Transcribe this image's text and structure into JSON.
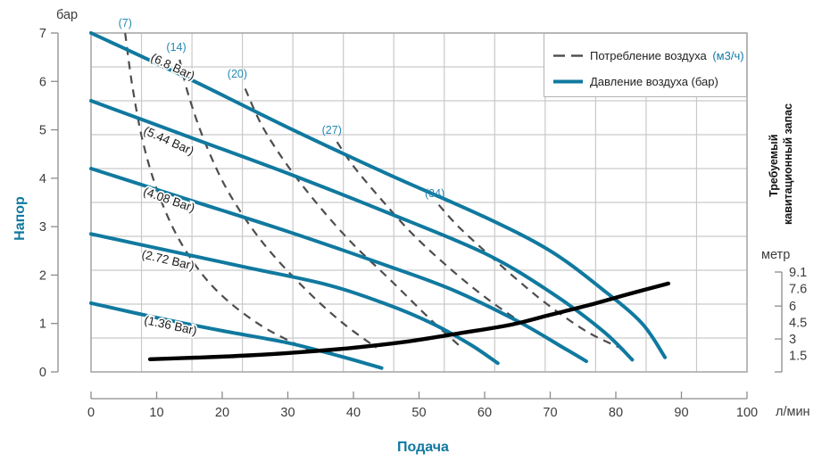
{
  "labels": {
    "y_unit": "бар",
    "y_axis": "Напор",
    "x_axis": "Подача",
    "x_unit": "л/мин",
    "right_unit": "метр",
    "right_axis_line1": "Требуемый",
    "right_axis_line2": "кавитационный запас"
  },
  "legend": {
    "air_consumption": "Потребление воздуха",
    "air_consumption_unit": "(м3/ч)",
    "air_pressure": "Давление воздуха (бар)"
  },
  "colors": {
    "teal": "#10799f",
    "annotation_teal": "#2589b4",
    "dashed": "#4d4d4d",
    "npsh": "#000000",
    "grid": "#c9c9c9",
    "plot_border": "#a8a8a8",
    "axis": "#8c8c8c",
    "tick_text": "#3c3c3c",
    "curve_label_text": "#1a1a1a"
  },
  "axes": {
    "x": {
      "min": 0,
      "max": 100,
      "ticks": [
        0,
        10,
        20,
        30,
        40,
        50,
        60,
        70,
        80,
        90,
        100
      ]
    },
    "y": {
      "min": 0,
      "max": 7,
      "ticks": [
        0,
        1,
        2,
        3,
        4,
        5,
        6,
        7
      ]
    },
    "right": {
      "max_m": 9.1,
      "label_values_m": [
        9.1,
        7.6,
        6,
        4.5,
        3,
        1.5
      ],
      "label_texts": [
        "9.1",
        "7.6",
        "6",
        "4.5",
        "3",
        "1.5"
      ],
      "tick_marks_m": [
        9.1,
        6,
        3,
        0
      ]
    }
  },
  "chart_data": {
    "type": "line",
    "title": "",
    "xlabel": "Подача (л/мин)",
    "ylabel": "Напор (бар)",
    "y2label": "Требуемый кавитационный запас (метр)",
    "xlim": [
      0,
      100
    ],
    "ylim": [
      0,
      7
    ],
    "y2lim": [
      0,
      9.1
    ],
    "grid": "on",
    "legend_position": "top-right",
    "series": [
      {
        "name": "6.8 Bar",
        "kind": "pressure",
        "y_scale": "bar",
        "label": "(6.8 Bar)",
        "label_x": 12.2,
        "label_y": 6.23,
        "label_angle": 25,
        "points": [
          [
            0,
            7.0
          ],
          [
            15,
            6.05
          ],
          [
            30,
            5.05
          ],
          [
            45,
            4.1
          ],
          [
            60,
            3.2
          ],
          [
            70,
            2.5
          ],
          [
            78,
            1.7
          ],
          [
            84,
            1.0
          ],
          [
            87.5,
            0.3
          ]
        ]
      },
      {
        "name": "5.44 Bar",
        "kind": "pressure",
        "y_scale": "bar",
        "label": "(5.44 Bar)",
        "label_x": 11.6,
        "label_y": 4.7,
        "label_angle": 24,
        "points": [
          [
            0,
            5.6
          ],
          [
            15,
            4.85
          ],
          [
            30,
            4.1
          ],
          [
            45,
            3.3
          ],
          [
            60,
            2.45
          ],
          [
            70,
            1.65
          ],
          [
            78,
            0.85
          ],
          [
            82.5,
            0.25
          ]
        ]
      },
      {
        "name": "4.08 Bar",
        "kind": "pressure",
        "y_scale": "bar",
        "label": "(4.08 Bar)",
        "label_x": 11.7,
        "label_y": 3.48,
        "label_angle": 19,
        "points": [
          [
            0,
            4.2
          ],
          [
            15,
            3.55
          ],
          [
            30,
            2.9
          ],
          [
            45,
            2.2
          ],
          [
            55,
            1.7
          ],
          [
            65,
            1.05
          ],
          [
            72,
            0.5
          ],
          [
            75.5,
            0.22
          ]
        ]
      },
      {
        "name": "2.72 Bar",
        "kind": "pressure",
        "y_scale": "bar",
        "label": "(2.72 Bar)",
        "label_x": 11.6,
        "label_y": 2.23,
        "label_angle": 13,
        "points": [
          [
            0,
            2.85
          ],
          [
            12,
            2.5
          ],
          [
            24,
            2.15
          ],
          [
            36,
            1.8
          ],
          [
            45,
            1.4
          ],
          [
            52,
            1.0
          ],
          [
            58,
            0.55
          ],
          [
            62,
            0.18
          ]
        ]
      },
      {
        "name": "1.36 Bar",
        "kind": "pressure",
        "y_scale": "bar",
        "label": "(1.36 Bar)",
        "label_x": 12.0,
        "label_y": 0.88,
        "label_angle": 12,
        "points": [
          [
            0,
            1.42
          ],
          [
            10,
            1.12
          ],
          [
            20,
            0.85
          ],
          [
            30,
            0.6
          ],
          [
            37,
            0.36
          ],
          [
            42,
            0.17
          ],
          [
            44.3,
            0.08
          ]
        ]
      },
      {
        "name": "7",
        "kind": "consumption",
        "y_scale": "bar",
        "label": "(7)",
        "label_x": 5.2,
        "label_y": 7.13,
        "points": [
          [
            5.2,
            7.0
          ],
          [
            6.3,
            5.9
          ],
          [
            8,
            4.7
          ],
          [
            10.5,
            3.6
          ],
          [
            14,
            2.6
          ],
          [
            19,
            1.7
          ],
          [
            26,
            0.95
          ],
          [
            34,
            0.4
          ]
        ]
      },
      {
        "name": "14",
        "kind": "consumption",
        "y_scale": "bar",
        "label": "(14)",
        "label_x": 13.0,
        "label_y": 6.63,
        "points": [
          [
            13.5,
            6.45
          ],
          [
            15,
            5.65
          ],
          [
            17.5,
            4.7
          ],
          [
            21,
            3.7
          ],
          [
            26,
            2.7
          ],
          [
            32,
            1.8
          ],
          [
            38,
            1.05
          ],
          [
            43.5,
            0.5
          ]
        ]
      },
      {
        "name": "20",
        "kind": "consumption",
        "y_scale": "bar",
        "label": "(20)",
        "label_x": 22.3,
        "label_y": 6.08,
        "points": [
          [
            23.5,
            5.85
          ],
          [
            26,
            5.1
          ],
          [
            29.5,
            4.35
          ],
          [
            34,
            3.55
          ],
          [
            39.5,
            2.7
          ],
          [
            46,
            1.85
          ],
          [
            52,
            1.05
          ],
          [
            56.5,
            0.5
          ]
        ]
      },
      {
        "name": "27",
        "kind": "consumption",
        "y_scale": "bar",
        "label": "(27)",
        "label_x": 36.7,
        "label_y": 4.92,
        "points": [
          [
            37.5,
            4.75
          ],
          [
            40,
            4.25
          ],
          [
            44,
            3.6
          ],
          [
            49,
            2.85
          ],
          [
            55,
            2.1
          ],
          [
            61,
            1.45
          ],
          [
            67,
            0.9
          ],
          [
            71.5,
            0.55
          ]
        ]
      },
      {
        "name": "34",
        "kind": "consumption",
        "y_scale": "bar",
        "label": "(34)",
        "label_x": 52.4,
        "label_y": 3.61,
        "points": [
          [
            53,
            3.45
          ],
          [
            56,
            3.0
          ],
          [
            60,
            2.5
          ],
          [
            65,
            1.9
          ],
          [
            70,
            1.35
          ],
          [
            76,
            0.8
          ],
          [
            82,
            0.42
          ]
        ]
      },
      {
        "name": "Требуемый кавитационный запас",
        "kind": "npsh",
        "y_scale": "m",
        "points": [
          [
            9,
            1.15
          ],
          [
            16,
            1.3
          ],
          [
            24,
            1.5
          ],
          [
            32,
            1.8
          ],
          [
            40,
            2.2
          ],
          [
            48,
            2.75
          ],
          [
            56,
            3.5
          ],
          [
            64,
            4.3
          ],
          [
            70,
            5.2
          ],
          [
            76,
            6.1
          ],
          [
            82,
            7.1
          ],
          [
            88,
            8.05
          ]
        ]
      }
    ]
  }
}
